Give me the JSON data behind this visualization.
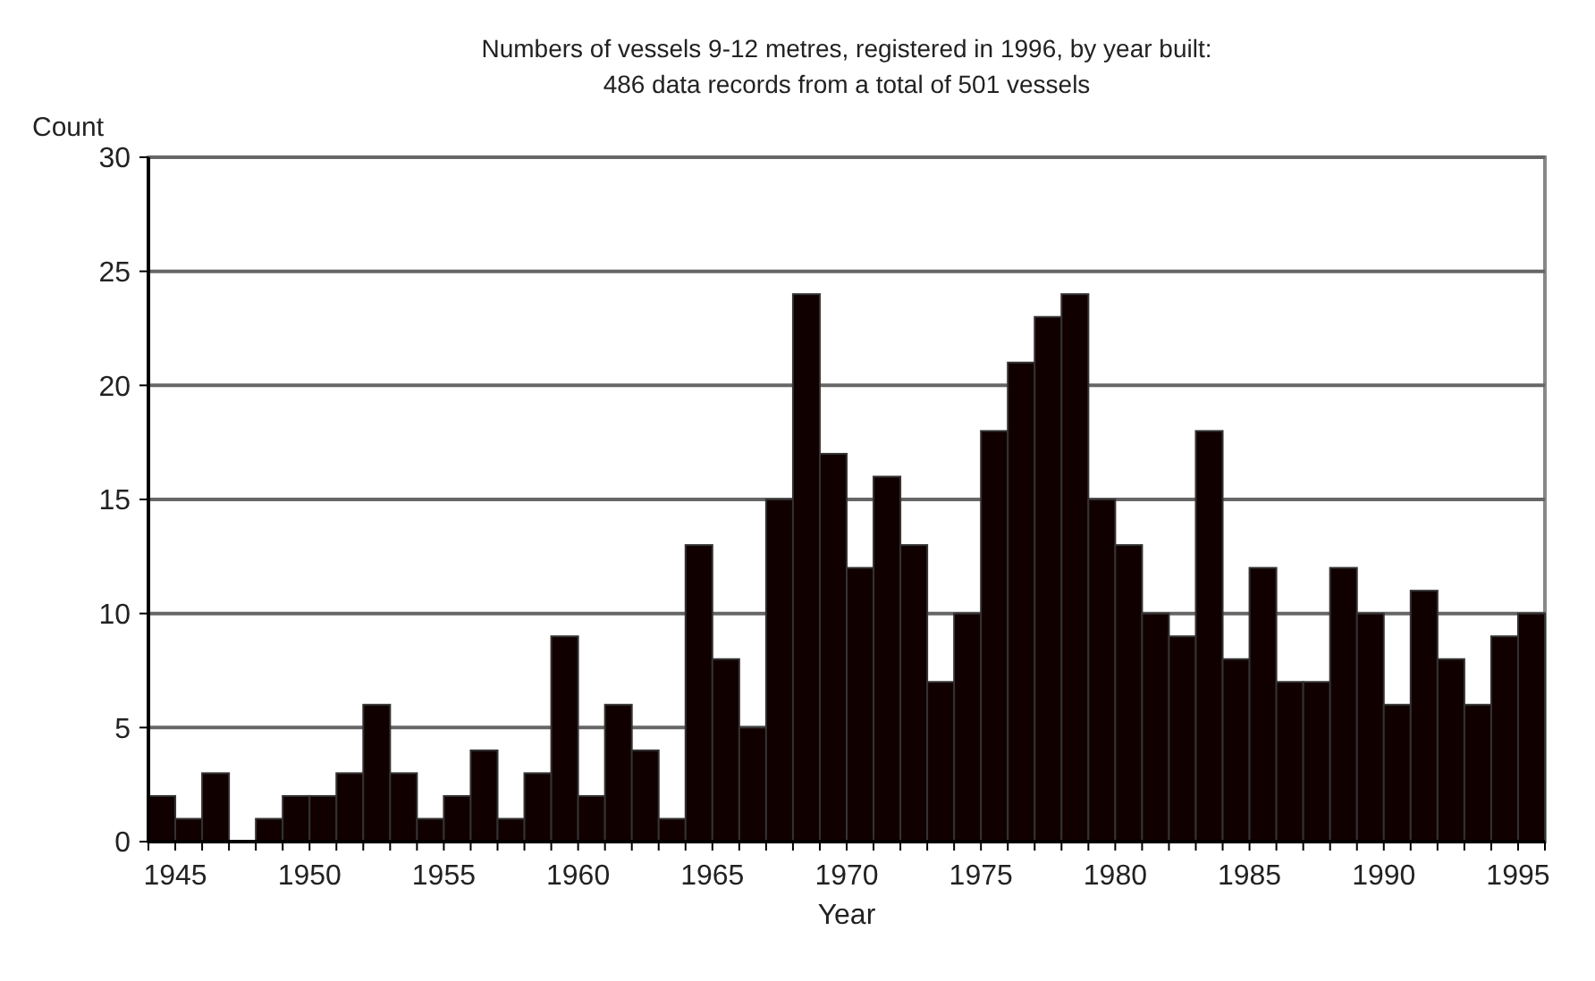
{
  "chart_data": {
    "type": "histogram",
    "title": "Numbers of vessels 9-12 metres, registered in 1996, by year built:",
    "subtitle": "486 data records from a total of 501 vessels",
    "xlabel": "Year",
    "ylabel": "Count",
    "color": "#110000",
    "bins": [
      1944,
      1945,
      1946,
      1947,
      1948,
      1949,
      1950,
      1951,
      1952,
      1953,
      1954,
      1955,
      1956,
      1957,
      1958,
      1959,
      1960,
      1961,
      1962,
      1963,
      1964,
      1965,
      1966,
      1967,
      1968,
      1969,
      1970,
      1971,
      1972,
      1973,
      1974,
      1975,
      1976,
      1977,
      1978,
      1979,
      1980,
      1981,
      1982,
      1983,
      1984,
      1985,
      1986,
      1987,
      1988,
      1989,
      1990,
      1991,
      1992,
      1993,
      1994,
      1995,
      1996
    ],
    "values": [
      2,
      1,
      3,
      0,
      1,
      2,
      2,
      3,
      6,
      3,
      1,
      2,
      4,
      1,
      3,
      9,
      2,
      6,
      4,
      1,
      13,
      8,
      5,
      15,
      24,
      17,
      12,
      16,
      13,
      7,
      10,
      18,
      21,
      23,
      24,
      15,
      13,
      10,
      9,
      18,
      8,
      12,
      7,
      7,
      12,
      10,
      6,
      11,
      8,
      6,
      9,
      10
    ],
    "xlim": [
      1944,
      1996
    ],
    "xticks": [
      1945,
      1950,
      1955,
      1960,
      1965,
      1970,
      1975,
      1980,
      1985,
      1990,
      1995
    ],
    "ylim": [
      0,
      30
    ],
    "yticks": [
      0,
      5,
      10,
      15,
      20,
      25,
      30
    ],
    "grid": "y"
  }
}
